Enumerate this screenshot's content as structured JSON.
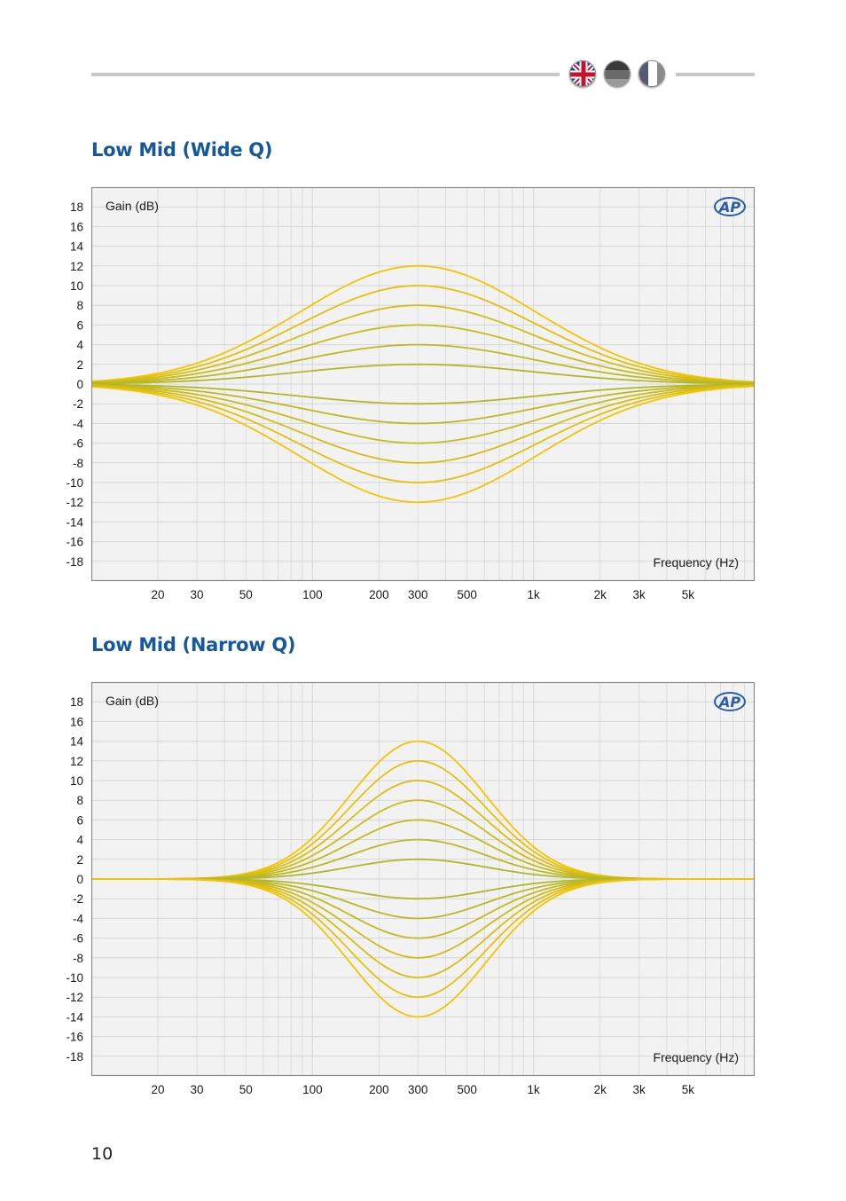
{
  "header": {
    "flags": [
      {
        "name": "uk-flag-icon"
      },
      {
        "name": "german-flag-icon"
      },
      {
        "name": "french-flag-icon"
      }
    ]
  },
  "page_number": "10",
  "colors": {
    "title": "#15589b",
    "curve_outer": "#f5c400",
    "curve_inner": "#a8b530",
    "plot_bg": "#f2f2f2",
    "grid": "#d6d6d6",
    "ap_logo": "#2a5ca8"
  },
  "chart_data": [
    {
      "type": "line",
      "title": "Low Mid (Wide Q)",
      "ylabel": "Gain (dB)",
      "xlabel": "Frequency (Hz)",
      "logo": "AP",
      "x_scale": "log",
      "xlim": [
        10,
        10000
      ],
      "ylim": [
        -20,
        20
      ],
      "y_ticks": [
        "18",
        "16",
        "14",
        "12",
        "10",
        "8",
        "6",
        "4",
        "2",
        "0",
        "-2",
        "-4",
        "-6",
        "-8",
        "-10",
        "-12",
        "-14",
        "-16",
        "-18"
      ],
      "x_ticks": [
        {
          "value": 20,
          "label": "20"
        },
        {
          "value": 30,
          "label": "30"
        },
        {
          "value": 50,
          "label": "50"
        },
        {
          "value": 100,
          "label": "100"
        },
        {
          "value": 200,
          "label": "200"
        },
        {
          "value": 300,
          "label": "300"
        },
        {
          "value": 500,
          "label": "500"
        },
        {
          "value": 1000,
          "label": "1k"
        },
        {
          "value": 2000,
          "label": "2k"
        },
        {
          "value": 3000,
          "label": "3k"
        },
        {
          "value": 5000,
          "label": "5k"
        }
      ],
      "grid": true,
      "center_freq_hz": 300,
      "bandwidth_octaves": 4.2,
      "series": [
        {
          "peak_db": 12
        },
        {
          "peak_db": 10
        },
        {
          "peak_db": 8
        },
        {
          "peak_db": 6
        },
        {
          "peak_db": 4
        },
        {
          "peak_db": 2
        },
        {
          "peak_db": -2
        },
        {
          "peak_db": -4
        },
        {
          "peak_db": -6
        },
        {
          "peak_db": -8
        },
        {
          "peak_db": -10
        },
        {
          "peak_db": -12
        }
      ]
    },
    {
      "type": "line",
      "title": "Low Mid (Narrow Q)",
      "ylabel": "Gain (dB)",
      "xlabel": "Frequency (Hz)",
      "logo": "AP",
      "x_scale": "log",
      "xlim": [
        10,
        10000
      ],
      "ylim": [
        -20,
        20
      ],
      "y_ticks": [
        "18",
        "16",
        "14",
        "12",
        "10",
        "8",
        "6",
        "4",
        "2",
        "0",
        "-2",
        "-4",
        "-6",
        "-8",
        "-10",
        "-12",
        "-14",
        "-16",
        "-18"
      ],
      "x_ticks": [
        {
          "value": 20,
          "label": "20"
        },
        {
          "value": 30,
          "label": "30"
        },
        {
          "value": 50,
          "label": "50"
        },
        {
          "value": 100,
          "label": "100"
        },
        {
          "value": 200,
          "label": "200"
        },
        {
          "value": 300,
          "label": "300"
        },
        {
          "value": 500,
          "label": "500"
        },
        {
          "value": 1000,
          "label": "1k"
        },
        {
          "value": 2000,
          "label": "2k"
        },
        {
          "value": 3000,
          "label": "3k"
        },
        {
          "value": 5000,
          "label": "5k"
        }
      ],
      "grid": true,
      "center_freq_hz": 300,
      "bandwidth_octaves": 2.4,
      "series": [
        {
          "peak_db": 14
        },
        {
          "peak_db": 12
        },
        {
          "peak_db": 10
        },
        {
          "peak_db": 8
        },
        {
          "peak_db": 6
        },
        {
          "peak_db": 4
        },
        {
          "peak_db": 2
        },
        {
          "peak_db": -2
        },
        {
          "peak_db": -4
        },
        {
          "peak_db": -6
        },
        {
          "peak_db": -8
        },
        {
          "peak_db": -10
        },
        {
          "peak_db": -12
        },
        {
          "peak_db": -14
        }
      ]
    }
  ]
}
